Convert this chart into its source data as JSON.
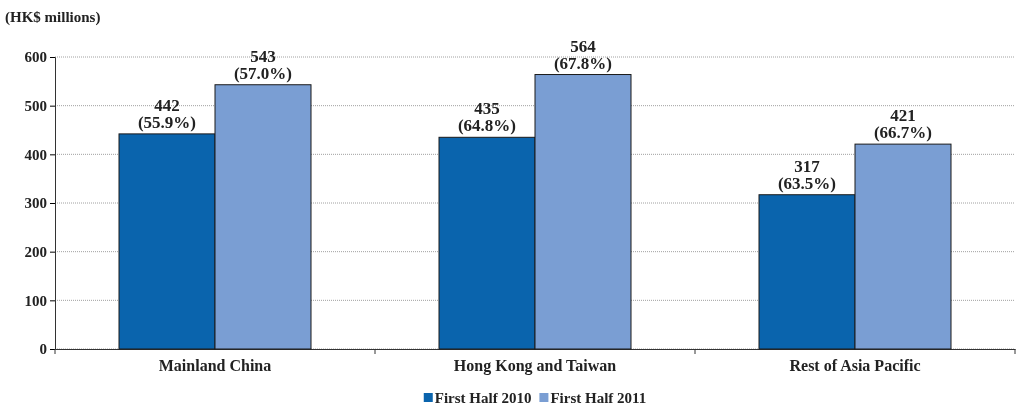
{
  "chart_data": {
    "type": "bar",
    "ylabel": "(HK$ millions)",
    "categories": [
      "Mainland China",
      "Hong Kong and Taiwan",
      "Rest of Asia Pacific"
    ],
    "series": [
      {
        "name": "First Half 2010",
        "color": "#0a64ad",
        "values": [
          442,
          435,
          317
        ],
        "value_labels": [
          "442\n(55.9%)",
          "435\n(64.8%)",
          "317\n(63.5%)"
        ]
      },
      {
        "name": "First Half 2011",
        "color": "#7a9ed3",
        "values": [
          543,
          564,
          421
        ],
        "value_labels": [
          "543\n(57.0%)",
          "564\n(67.8%)",
          "421\n(66.7%)"
        ]
      }
    ],
    "ylim": [
      0,
      600
    ],
    "yticks": [
      0,
      100,
      200,
      300,
      400,
      500,
      600
    ],
    "grid": "y",
    "legend": "bottom"
  }
}
